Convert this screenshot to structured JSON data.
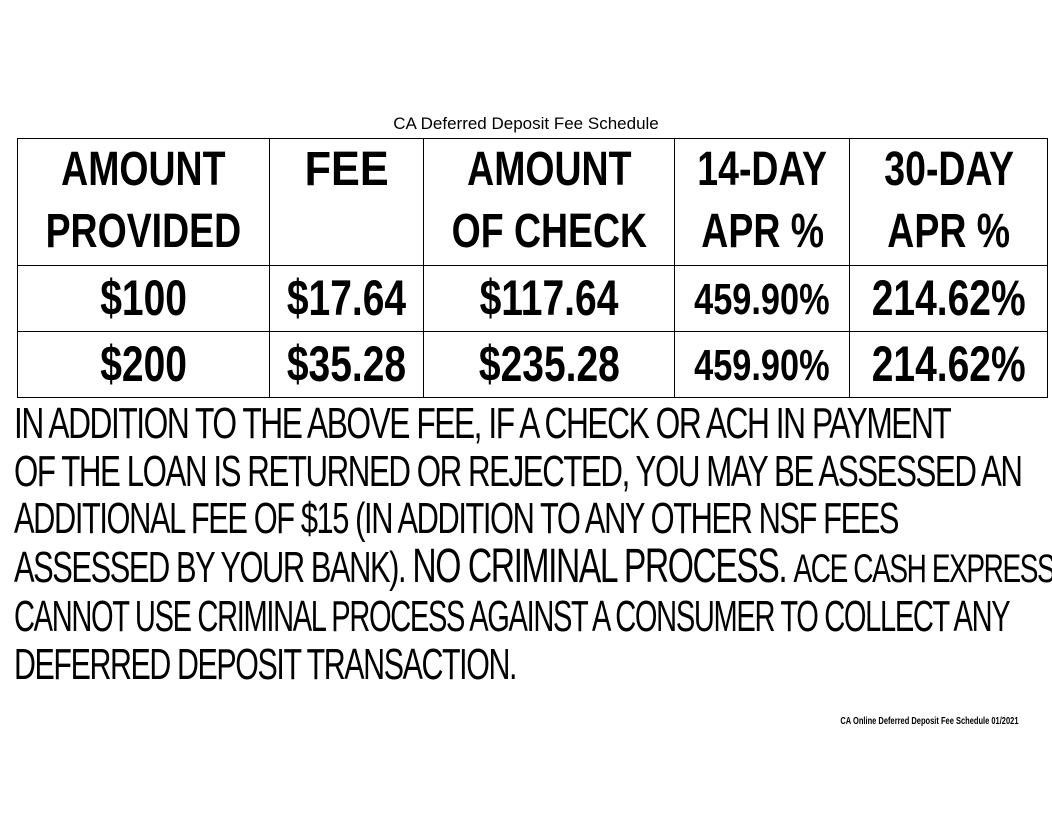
{
  "title": "CA Deferred Deposit Fee Schedule",
  "table": {
    "headers": [
      [
        "AMOUNT",
        "PROVIDED"
      ],
      [
        "FEE",
        ""
      ],
      [
        "AMOUNT",
        "OF CHECK"
      ],
      [
        "14-DAY",
        "APR %"
      ],
      [
        "30-DAY",
        "APR %"
      ]
    ],
    "rows": [
      [
        "$100",
        "$17.64",
        "$117.64",
        "459.90%",
        "214.62%"
      ],
      [
        "$200",
        "$35.28",
        "$235.28",
        "459.90%",
        "214.62%"
      ]
    ]
  },
  "disclosure": {
    "lines": [
      "IN ADDITION TO THE ABOVE FEE, IF A CHECK OR ACH IN PAYMENT",
      "OF THE LOAN IS RETURNED OR REJECTED, YOU MAY BE ASSESSED AN",
      "ADDITIONAL FEE  OF $15 (IN ADDITION TO ANY OTHER NSF FEES",
      "ASSESSED BY YOUR BANK).",
      "CANNOT USE CRIMINAL PROCESS AGAINST A CONSUMER TO COLLECT ANY",
      "DEFERRED DEPOSIT TRANSACTION."
    ],
    "emphasis": "NO CRIMINAL PROCESS.",
    "line4_tail": "ACE  CASH EXPRESS"
  },
  "footer": "CA Online Deferred Deposit Fee Schedule 01/2021"
}
